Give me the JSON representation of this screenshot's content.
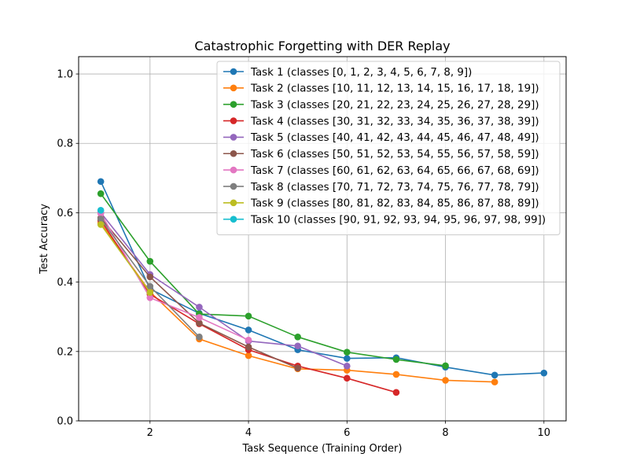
{
  "chart_data": {
    "type": "line",
    "title": "Catastrophic Forgetting with DER Replay",
    "xlabel": "Task Sequence (Training Order)",
    "ylabel": "Test Accuracy",
    "xlim": [
      0.55,
      10.45
    ],
    "ylim": [
      0.0,
      1.05
    ],
    "xticks": [
      2,
      4,
      6,
      8,
      10
    ],
    "yticks": [
      0.0,
      0.2,
      0.4,
      0.6,
      0.8,
      1.0
    ],
    "xtick_labels": [
      "2",
      "4",
      "6",
      "8",
      "10"
    ],
    "ytick_labels": [
      "0.0",
      "0.2",
      "0.4",
      "0.6",
      "0.8",
      "1.0"
    ],
    "grid": true,
    "legend_position": "top-right",
    "series": [
      {
        "name": "Task 1 (classes [0, 1, 2, 3, 4, 5, 6, 7, 8, 9])",
        "color": "#1f77b4",
        "x": [
          1,
          2,
          3,
          4,
          5,
          6,
          7,
          8,
          9,
          10
        ],
        "y": [
          0.69,
          0.38,
          0.31,
          0.262,
          0.205,
          0.18,
          0.182,
          0.155,
          0.132,
          0.138
        ]
      },
      {
        "name": "Task 2 (classes [10, 11, 12, 13, 14, 15, 16, 17, 18, 19])",
        "color": "#ff7f0e",
        "x": [
          1,
          2,
          3,
          4,
          5,
          6,
          7,
          8,
          9
        ],
        "y": [
          0.57,
          0.372,
          0.236,
          0.188,
          0.15,
          0.146,
          0.134,
          0.117,
          0.112
        ]
      },
      {
        "name": "Task 3 (classes [20, 21, 22, 23, 24, 25, 26, 27, 28, 29])",
        "color": "#2ca02c",
        "x": [
          1,
          2,
          3,
          4,
          5,
          6,
          7,
          8
        ],
        "y": [
          0.655,
          0.46,
          0.308,
          0.302,
          0.242,
          0.198,
          0.177,
          0.159
        ]
      },
      {
        "name": "Task 4 (classes [30, 31, 32, 33, 34, 35, 36, 37, 38, 39])",
        "color": "#d62728",
        "x": [
          1,
          2,
          3,
          4,
          5,
          6,
          7
        ],
        "y": [
          0.578,
          0.365,
          0.28,
          0.205,
          0.158,
          0.123,
          0.082
        ]
      },
      {
        "name": "Task 5 (classes [40, 41, 42, 43, 44, 45, 46, 47, 48, 49])",
        "color": "#9467bd",
        "x": [
          1,
          2,
          3,
          4,
          5,
          6
        ],
        "y": [
          0.6,
          0.422,
          0.328,
          0.23,
          0.216,
          0.158
        ]
      },
      {
        "name": "Task 6 (classes [50, 51, 52, 53, 54, 55, 56, 57, 58, 59])",
        "color": "#8c564b",
        "x": [
          1,
          2,
          3,
          4,
          5
        ],
        "y": [
          0.585,
          0.415,
          0.282,
          0.213,
          0.152
        ]
      },
      {
        "name": "Task 7 (classes [60, 61, 62, 63, 64, 65, 66, 67, 68, 69])",
        "color": "#e377c2",
        "x": [
          1,
          2,
          3,
          4
        ],
        "y": [
          0.598,
          0.355,
          0.298,
          0.233
        ]
      },
      {
        "name": "Task 8 (classes [70, 71, 72, 73, 74, 75, 76, 77, 78, 79])",
        "color": "#7f7f7f",
        "x": [
          1,
          2,
          3
        ],
        "y": [
          0.582,
          0.388,
          0.242
        ]
      },
      {
        "name": "Task 9 (classes [80, 81, 82, 83, 84, 85, 86, 87, 88, 89])",
        "color": "#bcbd22",
        "x": [
          1,
          2
        ],
        "y": [
          0.566,
          0.37
        ]
      },
      {
        "name": "Task 10 (classes [90, 91, 92, 93, 94, 95, 96, 97, 98, 99])",
        "color": "#17becf",
        "x": [
          1
        ],
        "y": [
          0.607
        ]
      }
    ]
  }
}
